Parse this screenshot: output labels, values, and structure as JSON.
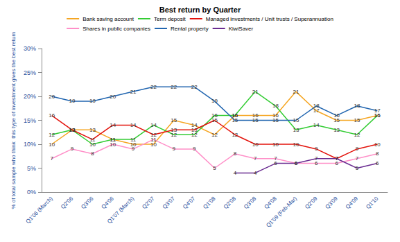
{
  "chart_data": {
    "type": "line",
    "title": "Best return by Quarter",
    "y_label": "% of total sample who think  this type of investment gives the best return",
    "categories": [
      "Q1'06 (March)",
      "Q2'06",
      "Q3'06",
      "Q4'06",
      "Q1'07 (March)",
      "Q2'07",
      "Q3'07",
      "Q4'07",
      "Q1'08",
      "Q2'08",
      "Q3'08",
      "Q4'08",
      "Q1'09 (Feb-Mar)",
      "Q2'09",
      "Q3'09",
      "Q4'09",
      "Q1'10"
    ],
    "series": [
      {
        "name": "Bank saving account",
        "color": "#f5a623",
        "values": [
          10,
          13,
          13,
          11,
          10,
          10,
          15,
          14,
          12,
          16,
          16,
          16,
          21,
          17,
          15,
          15,
          16
        ]
      },
      {
        "name": "Term deposit",
        "color": "#33cc33",
        "values": [
          12,
          13,
          10,
          11,
          11,
          14,
          12,
          12,
          16,
          16,
          21,
          18,
          13,
          14,
          13,
          12,
          16
        ]
      },
      {
        "name": "Managed investments / Unit trusts / Superannuation",
        "color": "#e3120b",
        "values": [
          16,
          13,
          11,
          14,
          14,
          12,
          13,
          13,
          15,
          12,
          10,
          10,
          10,
          9,
          7,
          9,
          10
        ]
      },
      {
        "name": "Shares in public companies",
        "color": "#ff8fc8",
        "values": [
          7,
          9,
          8,
          10,
          9,
          11,
          9,
          9,
          5,
          8,
          7,
          7,
          6,
          6,
          6,
          7,
          8
        ]
      },
      {
        "name": "Rental property",
        "color": "#2266b0",
        "values": [
          20,
          19,
          19,
          20,
          21,
          22,
          22,
          22,
          19,
          15,
          15,
          15,
          15,
          18,
          16,
          18,
          17
        ]
      },
      {
        "name": "KiwiSaver",
        "color": "#6a2c91",
        "values": [
          null,
          null,
          null,
          null,
          null,
          null,
          null,
          null,
          null,
          4,
          4,
          6,
          6,
          7,
          7,
          5,
          6
        ]
      }
    ],
    "ylim": [
      0,
      30
    ],
    "yticks": [
      {
        "value": 0,
        "label": "0%"
      },
      {
        "value": 5,
        "label": "5%"
      },
      {
        "value": 10,
        "label": "10%"
      },
      {
        "value": 15,
        "label": "15%"
      },
      {
        "value": 20,
        "label": "20%"
      },
      {
        "value": 25,
        "label": "25%"
      },
      {
        "value": 30,
        "label": "30%"
      }
    ],
    "grid": false,
    "legend": "top",
    "data_labels": true
  }
}
